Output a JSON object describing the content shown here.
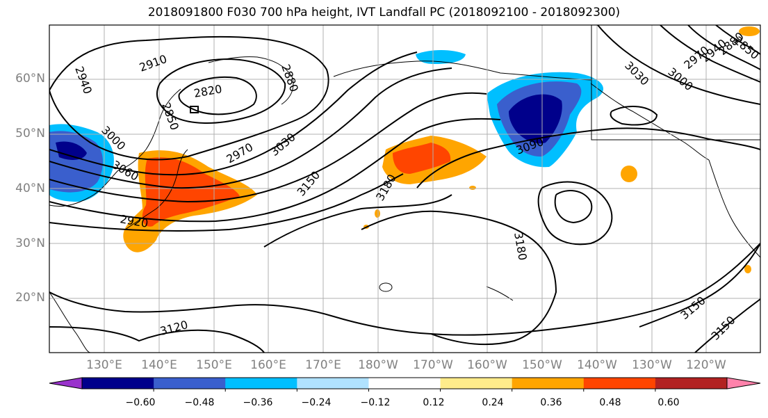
{
  "title": "2018091800 F030 700 hPa height, IVT Landfall PC (2018092100 - 2018092300)",
  "latitude_labels": [
    "60°N",
    "50°N",
    "40°N",
    "30°N",
    "20°N"
  ],
  "longitude_labels": [
    "130°E",
    "140°E",
    "150°E",
    "160°E",
    "170°E",
    "180°W",
    "170°W",
    "160°W",
    "150°W",
    "140°W",
    "130°W",
    "120°W"
  ],
  "contour_labels": [
    "2940",
    "2910",
    "2820",
    "2880",
    "2850",
    "3000",
    "3060",
    "2970",
    "3030",
    "3150",
    "3180",
    "3090",
    "3180",
    "3120",
    "3150",
    "3150",
    "3030",
    "3000",
    "2970",
    "2940",
    "2880",
    "2850",
    "2920"
  ],
  "colorbar": {
    "tick_labels": [
      "−0.60",
      "−0.48",
      "−0.36",
      "−0.24",
      "−0.12",
      "0.12",
      "0.24",
      "0.36",
      "0.48",
      "0.60"
    ],
    "colors": [
      "#9932cc",
      "#00008b",
      "#3a5fcd",
      "#00bfff",
      "#b0e2ff",
      "#ffffff",
      "#ffec8b",
      "#ffa500",
      "#ff4500",
      "#b22222",
      "#ff82ab"
    ]
  }
}
